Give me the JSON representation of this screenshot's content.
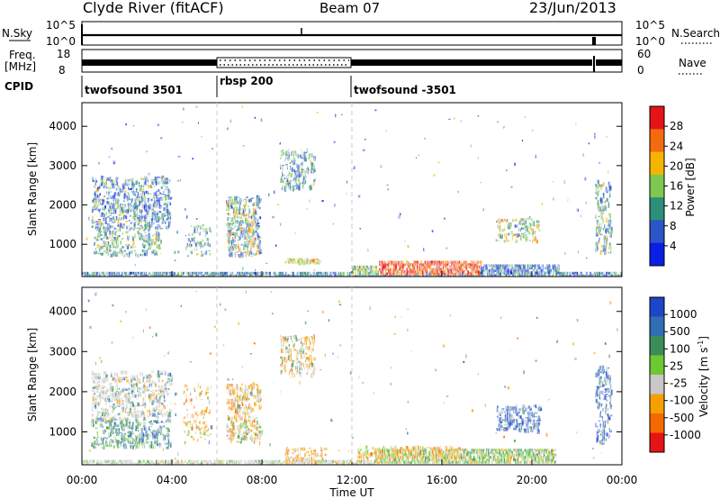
{
  "header": {
    "station": "Clyde River (fitACF)",
    "beam": "Beam 07",
    "date": "23/Jun/2013"
  },
  "panels": {
    "nsky": {
      "left_label": "N.Sky",
      "left_ticks": [
        "10^5",
        "10^0"
      ],
      "right_label": "N.Search",
      "right_ticks": [
        "10^5",
        "10^0"
      ]
    },
    "freq": {
      "left_label_1": "Freq.",
      "left_label_2": "[MHz]",
      "left_ticks": [
        "18",
        "8"
      ],
      "right_label": "Nave",
      "right_ticks": [
        "60",
        "0"
      ]
    },
    "cpid": {
      "label": "CPID",
      "segments": [
        {
          "label": "twofsound 3501",
          "start": "00:00",
          "end": "06:00"
        },
        {
          "label": "rbsp 200",
          "start": "06:00",
          "end": "12:00"
        },
        {
          "label": "twofsound -3501",
          "start": "12:00",
          "end": "00:00"
        }
      ]
    }
  },
  "chart_data": [
    {
      "type": "heatmap",
      "name": "power",
      "ylabel": "Slant Range [km]",
      "ylim": [
        180,
        4600
      ],
      "yticks": [
        "1000",
        "2000",
        "3000",
        "4000"
      ],
      "xlim": [
        "00:00",
        "24:00"
      ],
      "colorbar": {
        "label": "Power [dB]",
        "ticks": [
          "4",
          "8",
          "12",
          "16",
          "20",
          "24",
          "28"
        ],
        "colors": [
          "#0a1ee6",
          "#2a55c8",
          "#2e8f78",
          "#7ec850",
          "#f5b400",
          "#f56a10",
          "#e61414"
        ]
      },
      "echo_regions": [
        {
          "t_start": 0.4,
          "t_end": 3.9,
          "r_min": 600,
          "r_max": 2800,
          "level": "mixed low"
        },
        {
          "t_start": 6.4,
          "t_end": 7.9,
          "r_min": 700,
          "r_max": 2200,
          "level": "low to mid"
        },
        {
          "t_start": 8.8,
          "t_end": 10.3,
          "r_min": 2400,
          "r_max": 3400,
          "level": "mid"
        },
        {
          "t_start": 13.2,
          "t_end": 17.7,
          "r_min": 200,
          "r_max": 550,
          "level": "high"
        },
        {
          "t_start": 0.0,
          "t_end": 24.0,
          "r_min": 180,
          "r_max": 300,
          "level": "ground scatter"
        },
        {
          "t_start": 18.5,
          "t_end": 20.3,
          "r_min": 1100,
          "r_max": 1600,
          "level": "mid"
        },
        {
          "t_start": 22.8,
          "t_end": 23.4,
          "r_min": 800,
          "r_max": 2600,
          "level": "mid"
        }
      ]
    },
    {
      "type": "heatmap",
      "name": "velocity",
      "ylabel": "Slant Range [km]",
      "ylim": [
        180,
        4600
      ],
      "yticks": [
        "1000",
        "2000",
        "3000",
        "4000"
      ],
      "xlim": [
        "00:00",
        "24:00"
      ],
      "xticks": [
        "00:00",
        "04:00",
        "08:00",
        "12:00",
        "16:00",
        "20:00",
        "00:00"
      ],
      "xlabel": "Time UT",
      "colorbar": {
        "label": "Velocity [m s-1]",
        "label_main": "Velocity [m s",
        "label_exp": "-1",
        "label_end": "]",
        "ticks": [
          "1000",
          "500",
          "100",
          "25",
          "-25",
          "-100",
          "-500",
          "-1000"
        ],
        "colors": [
          "#1e46c8",
          "#326eb4",
          "#3c8c5a",
          "#6ec832",
          "#c8c8c8",
          "#f5a000",
          "#f56a00",
          "#e61414"
        ]
      },
      "echo_regions": [
        {
          "t_start": 0.4,
          "t_end": 3.9,
          "r_min": 1300,
          "r_max": 2500,
          "velocity": "near zero (grey)"
        },
        {
          "t_start": 0.4,
          "t_end": 3.9,
          "r_min": 600,
          "r_max": 1200,
          "velocity": "positive (green/blue)"
        },
        {
          "t_start": 6.4,
          "t_end": 7.9,
          "r_min": 700,
          "r_max": 2200,
          "velocity": "negative (orange)"
        },
        {
          "t_start": 13.0,
          "t_end": 21.0,
          "r_min": 200,
          "r_max": 550,
          "velocity": "mixed green/orange"
        },
        {
          "t_start": 18.4,
          "t_end": 20.3,
          "r_min": 1000,
          "r_max": 1600,
          "velocity": "positive (blue)"
        },
        {
          "t_start": 22.8,
          "t_end": 23.4,
          "r_min": 700,
          "r_max": 2600,
          "velocity": "positive (blue)"
        }
      ]
    }
  ]
}
